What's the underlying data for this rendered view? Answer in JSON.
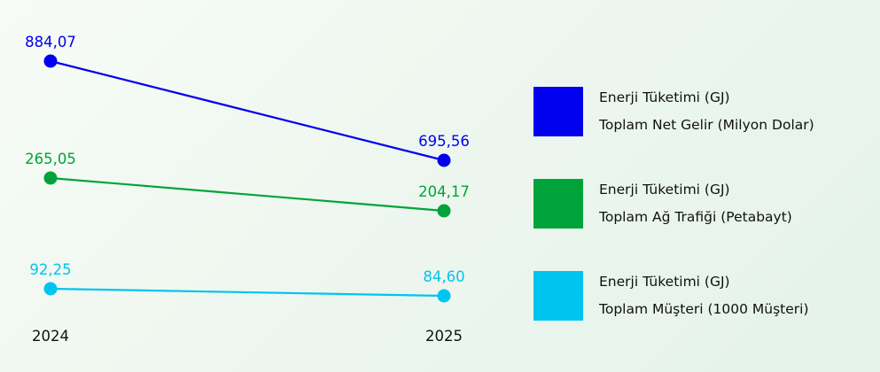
{
  "chart_data": {
    "type": "line",
    "x": [
      "2024",
      "2025"
    ],
    "series": [
      {
        "name": "Enerji Tüketimi (GJ) Toplam Net Gelir (Milyon Dolar)",
        "values": [
          884.07,
          695.56
        ],
        "labels": [
          "884,07",
          "695,56"
        ],
        "color": "#0000ee"
      },
      {
        "name": "Enerji Tüketimi (GJ) Toplam Ağ Trafiği (Petabayt)",
        "values": [
          265.05,
          204.17
        ],
        "labels": [
          "265,05",
          "204,17"
        ],
        "color": "#00a33a"
      },
      {
        "name": "Enerji Tüketimi (GJ) Toplam Müşteri (1000 Müşteri)",
        "values": [
          92.25,
          84.6
        ],
        "labels": [
          "92,25",
          "84,60"
        ],
        "color": "#00c4f0"
      }
    ],
    "legend": {
      "position": "right",
      "items": [
        {
          "line1": "Enerji Tüketimi (GJ)",
          "line2": "Toplam Net Gelir (Milyon Dolar)",
          "color": "#0000ee"
        },
        {
          "line1": "Enerji Tüketimi (GJ)",
          "line2": "Toplam Ağ Trafiği (Petabayt)",
          "color": "#00a33a"
        },
        {
          "line1": "Enerji Tüketimi (GJ)",
          "line2": "Toplam Müşteri (1000 Müşteri)",
          "color": "#00c4f0"
        }
      ]
    },
    "grid": false,
    "yaxis_visible": false
  }
}
